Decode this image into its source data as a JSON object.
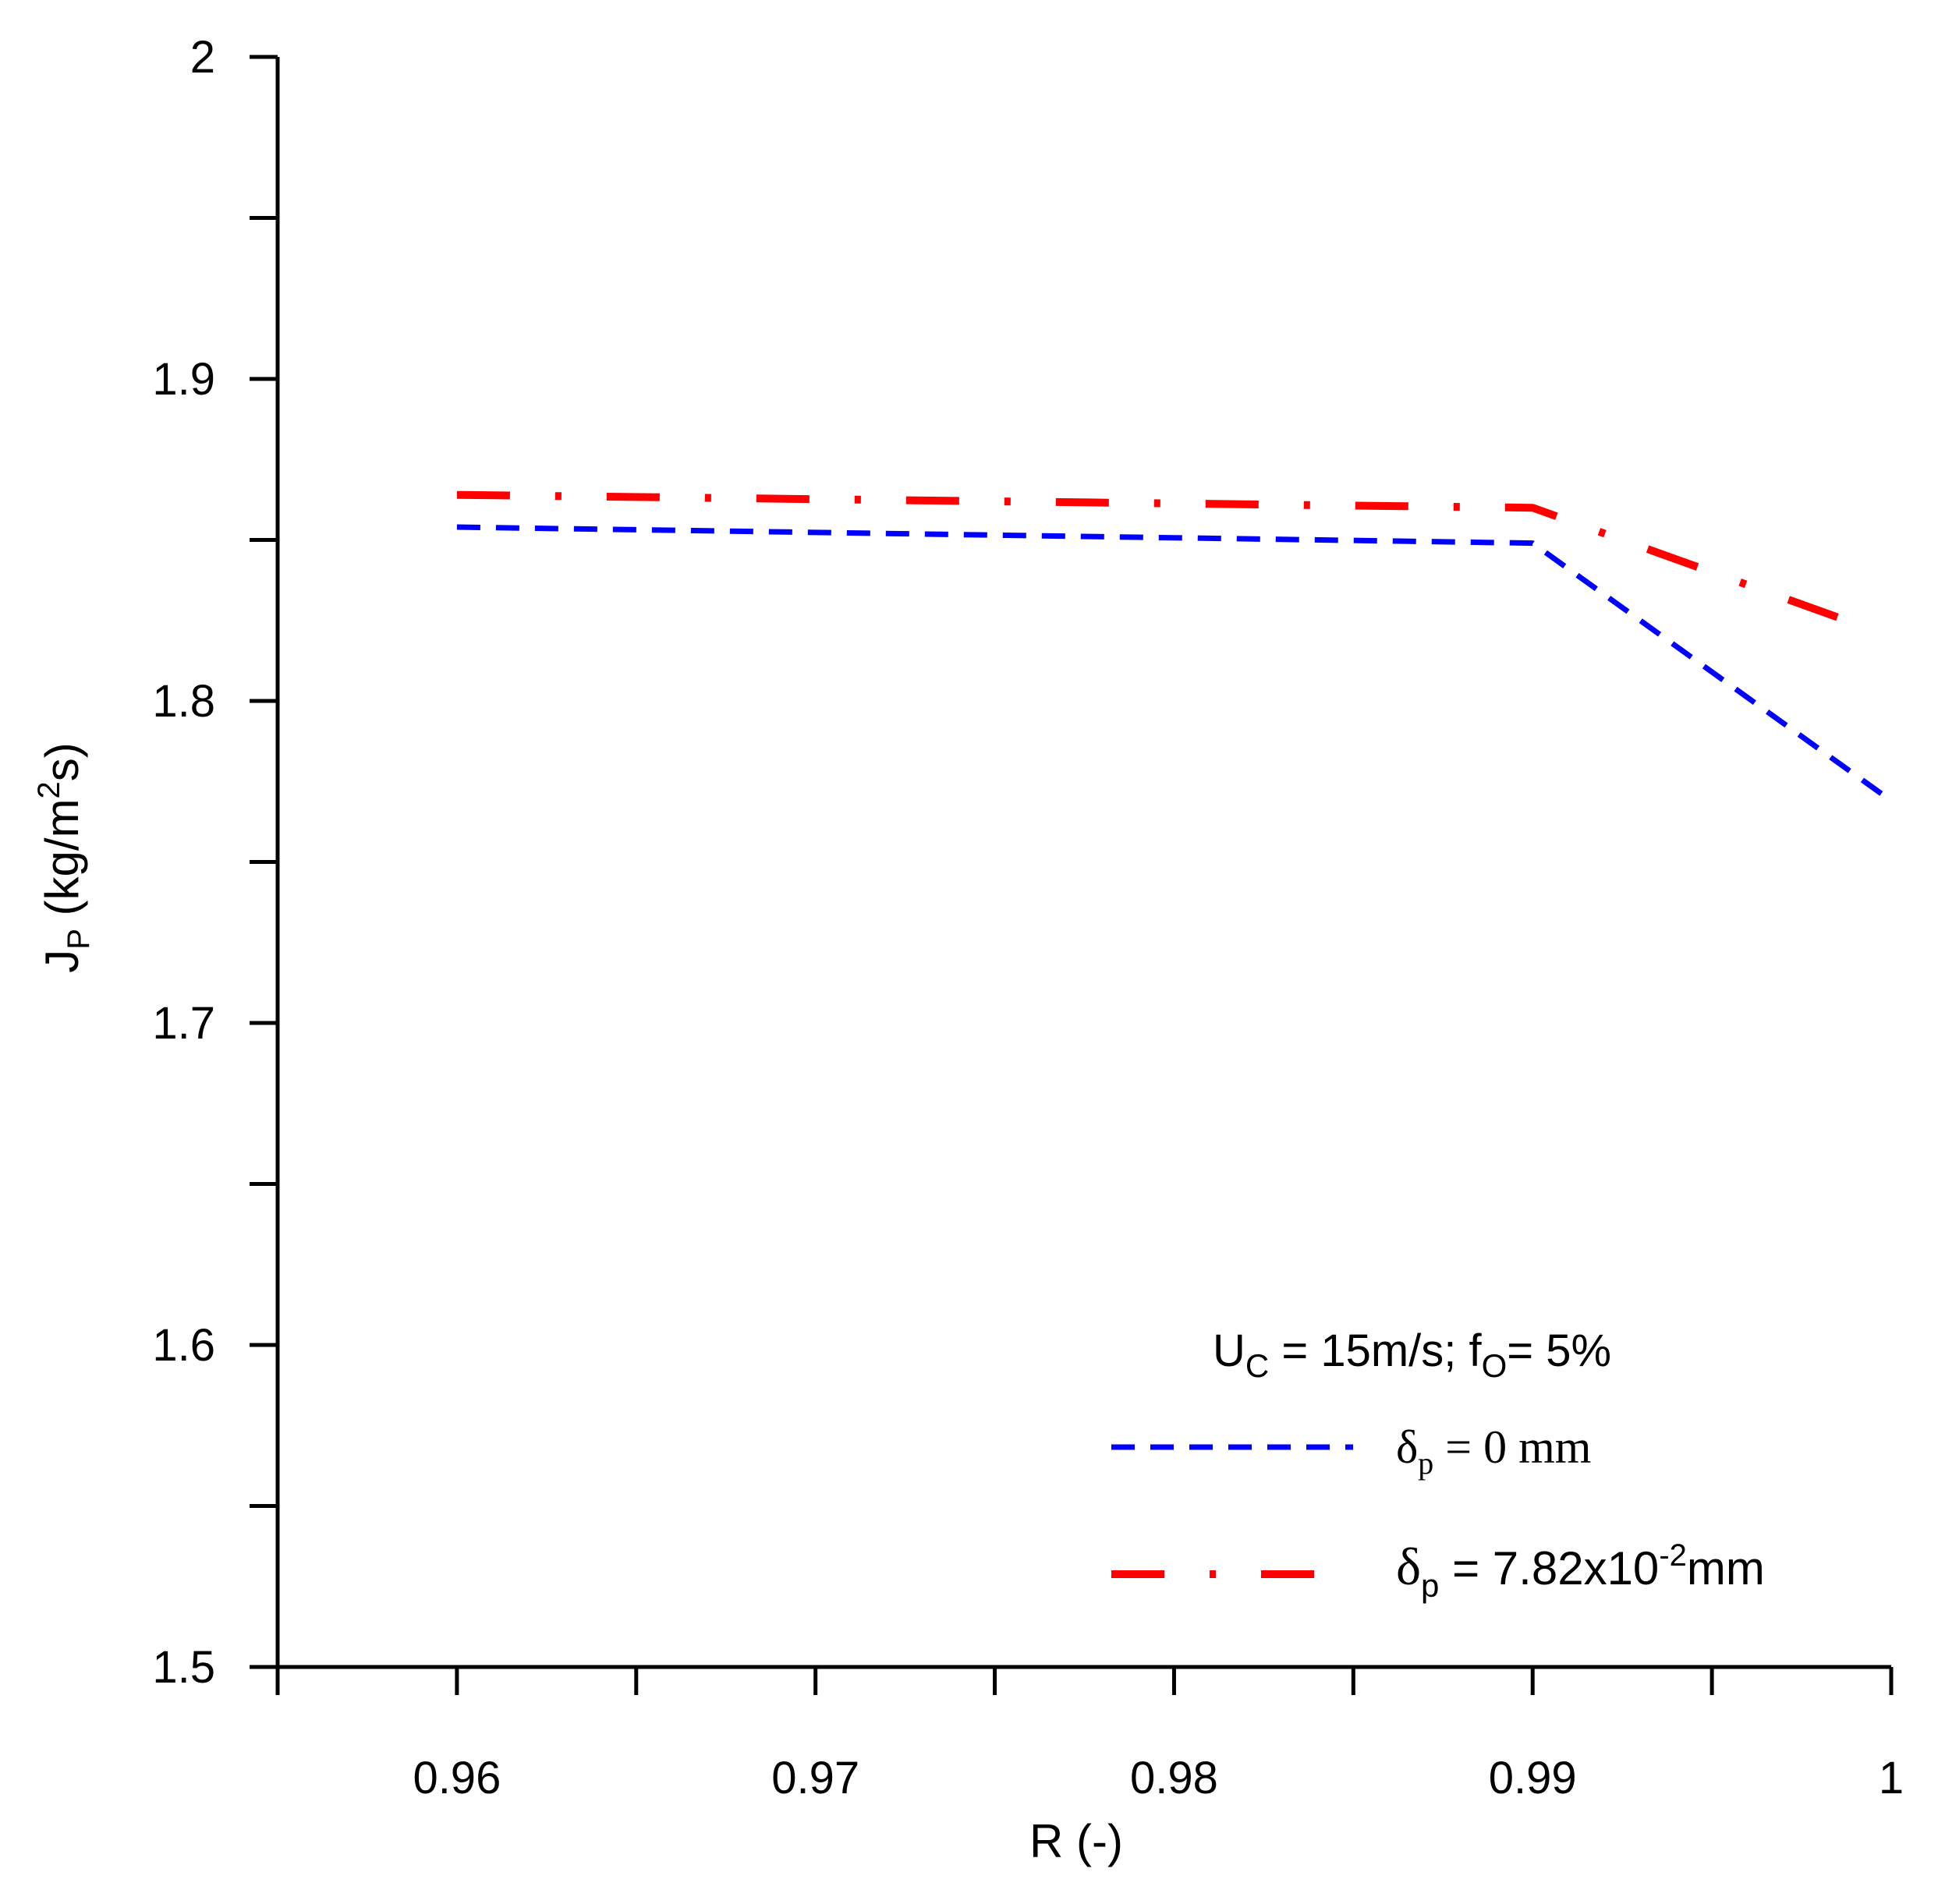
{
  "chart_data": {
    "type": "line",
    "title": "",
    "xlabel": "R (-)",
    "ylabel": {
      "main": "J",
      "sub": "P",
      "unit_before": " (kg/m",
      "unit_sup": "2",
      "unit_after": "s)"
    },
    "xlim": [
      0.955,
      1.0
    ],
    "ylim": [
      1.5,
      2.0
    ],
    "x_major_ticks": [
      0.96,
      0.97,
      0.98,
      0.99,
      1.0
    ],
    "x_tick_labels": [
      "0.96",
      "0.97",
      "0.98",
      "0.99",
      "1"
    ],
    "x_minor_ticks": [
      0.955,
      0.965,
      0.975,
      0.985,
      0.995
    ],
    "y_major_ticks": [
      1.5,
      1.6,
      1.7,
      1.8,
      1.9,
      2.0
    ],
    "y_tick_labels": [
      "1.5",
      "1.6",
      "1.7",
      "1.8",
      "1.9",
      "2"
    ],
    "y_minor_ticks": [
      1.55,
      1.65,
      1.75,
      1.85,
      1.95
    ],
    "grid": false,
    "legend_position": "bottom-right",
    "legend_title": {
      "u": "U",
      "u_sub": "C",
      "mid": " = 15m/s; f",
      "f_sub": "O",
      "end": "= 5%"
    },
    "series": [
      {
        "name": "δp = 0 mm",
        "label_symbol": "δ",
        "label_sub": "p",
        "label_rest": " = 0 mm",
        "color": "#0000ff",
        "style": "dashed",
        "x": [
          0.96,
          0.99,
          1.0
        ],
        "y": [
          1.854,
          1.849,
          1.769
        ]
      },
      {
        "name": "δp = 7.82x10-2mm",
        "label_symbol": "δ",
        "label_sub": "p",
        "label_rest": " =  7.82x10",
        "label_sup": "-2",
        "label_end": "mm",
        "color": "#ff0000",
        "style": "dash-dot",
        "x": [
          0.96,
          0.99,
          0.9985
        ],
        "y": [
          1.864,
          1.86,
          1.826
        ]
      }
    ]
  }
}
